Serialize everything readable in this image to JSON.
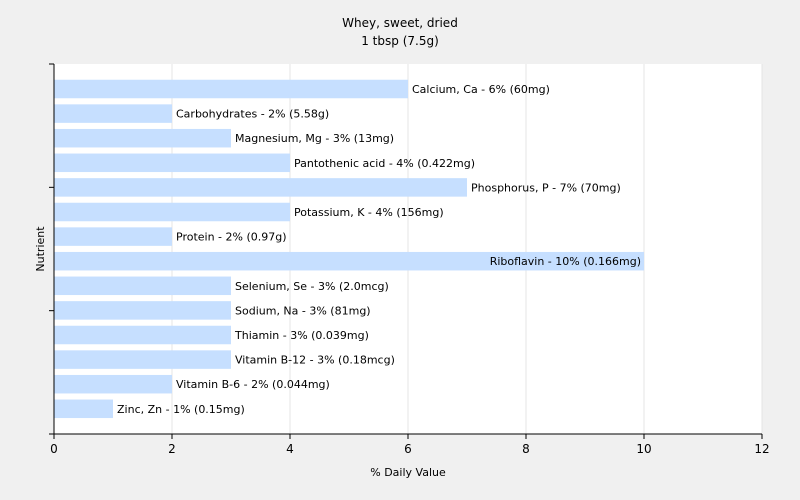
{
  "chart_data": {
    "type": "bar",
    "orientation": "horizontal",
    "title": "Whey, sweet, dried",
    "subtitle": "1 tbsp (7.5g)",
    "xlabel": "% Daily Value",
    "ylabel": "Nutrient",
    "xlim": [
      0,
      12
    ],
    "xticks": [
      0,
      2,
      4,
      6,
      8,
      10,
      12
    ],
    "grid": true,
    "bar_color": "#c6dfff",
    "categories": [
      "Calcium, Ca",
      "Carbohydrates",
      "Magnesium, Mg",
      "Pantothenic acid",
      "Phosphorus, P",
      "Potassium, K",
      "Protein",
      "Riboflavin",
      "Selenium, Se",
      "Sodium, Na",
      "Thiamin",
      "Vitamin B-12",
      "Vitamin B-6",
      "Zinc, Zn"
    ],
    "values": [
      6,
      2,
      3,
      4,
      7,
      4,
      2,
      10,
      3,
      3,
      3,
      3,
      2,
      1
    ],
    "labels": [
      "Calcium, Ca - 6% (60mg)",
      "Carbohydrates - 2% (5.58g)",
      "Magnesium, Mg - 3% (13mg)",
      "Pantothenic acid - 4% (0.422mg)",
      "Phosphorus, P - 7% (70mg)",
      "Potassium, K - 4% (156mg)",
      "Protein - 2% (0.97g)",
      "Riboflavin - 10% (0.166mg)",
      "Selenium, Se - 3% (2.0mcg)",
      "Sodium, Na - 3% (81mg)",
      "Thiamin - 3% (0.039mg)",
      "Vitamin B-12 - 3% (0.18mcg)",
      "Vitamin B-6 - 2% (0.044mg)",
      "Zinc, Zn - 1% (0.15mg)"
    ]
  }
}
